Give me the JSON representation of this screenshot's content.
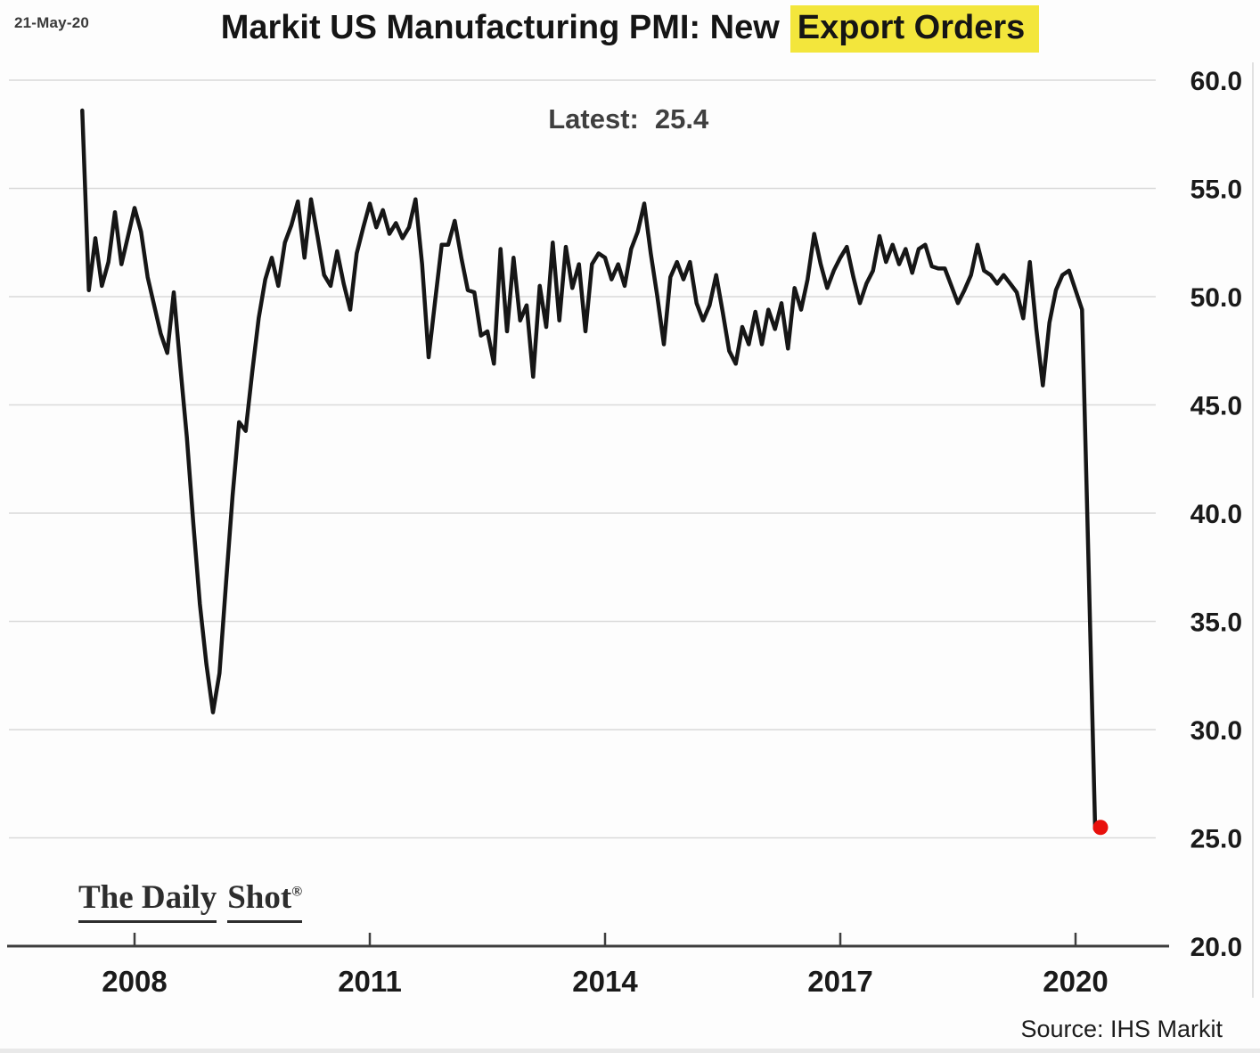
{
  "header": {
    "date_stamp": "21-May-20",
    "title_prefix": "Markit US Manufacturing PMI: New",
    "title_highlight": "Export Orders"
  },
  "annotation": {
    "latest_label": "Latest:",
    "latest_value": "25.4"
  },
  "footer": {
    "logo_part1": "The Daily",
    "logo_part2": "Shot",
    "logo_reg": "®",
    "source": "Source: IHS Markit"
  },
  "chart_data": {
    "type": "line",
    "title": "Markit US Manufacturing PMI: New Export Orders",
    "series_name": "New Export Orders",
    "frequency": "monthly",
    "start": "2007-05",
    "end": "2020-04",
    "latest": 25.4,
    "values": [
      58.6,
      50.3,
      52.7,
      50.5,
      51.6,
      53.9,
      51.5,
      52.8,
      54.1,
      53.0,
      50.9,
      49.6,
      48.3,
      47.4,
      50.2,
      46.8,
      43.5,
      39.5,
      35.8,
      33.0,
      30.8,
      32.6,
      36.8,
      40.8,
      44.2,
      43.8,
      46.5,
      49.0,
      50.8,
      51.8,
      50.5,
      52.5,
      53.3,
      54.4,
      51.8,
      54.5,
      52.8,
      51.0,
      50.5,
      52.1,
      50.6,
      49.4,
      52.0,
      53.2,
      54.3,
      53.2,
      54.0,
      52.9,
      53.4,
      52.7,
      53.2,
      54.5,
      51.5,
      47.2,
      49.8,
      52.4,
      52.4,
      53.5,
      51.8,
      50.3,
      50.2,
      48.2,
      48.4,
      46.9,
      52.2,
      48.4,
      51.8,
      48.9,
      49.6,
      46.3,
      50.5,
      48.6,
      52.5,
      48.9,
      52.3,
      50.4,
      51.5,
      48.4,
      51.5,
      52.0,
      51.8,
      50.8,
      51.5,
      50.5,
      52.2,
      53.0,
      54.3,
      52.0,
      50.0,
      47.8,
      50.9,
      51.6,
      50.8,
      51.6,
      49.7,
      48.9,
      49.6,
      51.0,
      49.3,
      47.5,
      46.9,
      48.6,
      47.8,
      49.3,
      47.8,
      49.4,
      48.5,
      49.7,
      47.6,
      50.4,
      49.4,
      50.8,
      52.9,
      51.5,
      50.4,
      51.2,
      51.8,
      52.3,
      50.9,
      49.7,
      50.6,
      51.2,
      52.8,
      51.6,
      52.4,
      51.5,
      52.2,
      51.1,
      52.2,
      52.4,
      51.4,
      51.3,
      51.3,
      50.5,
      49.7,
      50.3,
      51.0,
      52.4,
      51.2,
      51.0,
      50.6,
      51.0,
      50.6,
      50.2,
      49.0,
      51.6,
      48.5,
      45.9,
      48.8,
      50.3,
      51.0,
      51.2,
      50.3,
      49.4,
      37.5,
      25.4
    ],
    "y_tick_labels": [
      "60.0",
      "55.0",
      "50.0",
      "45.0",
      "40.0",
      "35.0",
      "30.0",
      "25.0",
      "20.0"
    ],
    "y_ticks": [
      60,
      55,
      50,
      45,
      40,
      35,
      30,
      25,
      20
    ],
    "x_ticks": [
      2008,
      2011,
      2014,
      2017,
      2020
    ],
    "ylim": [
      20,
      60
    ],
    "grid": true,
    "legend": "none",
    "colors": {
      "line": "#161616",
      "marker": "#e8100c",
      "grid": "#dadada",
      "axis": "#3e3e3e",
      "highlight": "#f3e63c",
      "edge": "#d8d8d8"
    }
  }
}
